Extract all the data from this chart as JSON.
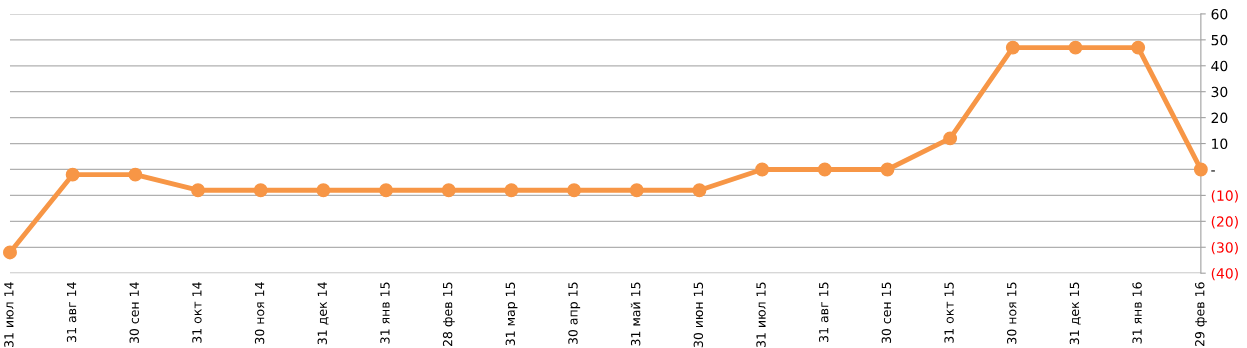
{
  "chart_data": {
    "type": "line",
    "categories": [
      "31 июл 14",
      "31 авг 14",
      "30 сен 14",
      "31 окт 14",
      "30 ноя 14",
      "31 дек 14",
      "31 янв 15",
      "28 фев 15",
      "31 мар 15",
      "30 апр 15",
      "31 май 15",
      "30 июн 15",
      "31 июл 15",
      "31 авг 15",
      "30 сен 15",
      "31 окт 15",
      "30 ноя 15",
      "31 дек 15",
      "31 янв 16",
      "29 фев 16"
    ],
    "series": [
      {
        "color": "#f79646",
        "values": [
          -32,
          -2,
          -2,
          -8,
          -8,
          -8,
          -8,
          -8,
          -8,
          -8,
          -8,
          -8,
          0,
          0,
          0,
          12,
          47,
          47,
          47,
          0
        ]
      }
    ],
    "ylim": [
      -40,
      60
    ],
    "yticks": [
      {
        "value": -40,
        "label": "(40)"
      },
      {
        "value": -30,
        "label": "(30)"
      },
      {
        "value": -20,
        "label": "(20)"
      },
      {
        "value": -10,
        "label": "(10)"
      },
      {
        "value": 0,
        "label": "-"
      },
      10,
      20,
      30,
      40,
      50,
      60
    ],
    "grid": "y",
    "marker": "circle",
    "line_style": "solid"
  }
}
